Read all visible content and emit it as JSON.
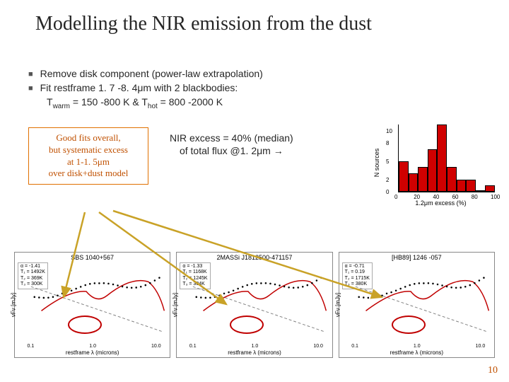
{
  "title": "Modelling the NIR emission from the dust",
  "bullets": [
    "Remove disk component (power-law extrapolation)",
    "Fit restframe 1. 7 -8. 4μm with 2 blackbodies:"
  ],
  "temp_line": {
    "prefix": "T",
    "sub1": "warm",
    "mid1": " = 150 -800 K  &   T",
    "sub2": "hot",
    "mid2": " = 800 -2000 K"
  },
  "goodfits": {
    "l1": "Good fits overall,",
    "l2": "but systematic excess",
    "l3": "at 1-1. 5μm",
    "l4": "over disk+dust model"
  },
  "nir_excess": {
    "l1": "NIR excess = 40% (median)",
    "l2": "of total flux @1. 2μm →"
  },
  "histogram": {
    "ylabel": "N sources",
    "xlabel": "1.2μm excess (%)",
    "bar_color": "#d00000",
    "bins": [
      0,
      10,
      20,
      30,
      40,
      50,
      60,
      70,
      80,
      90,
      100
    ],
    "counts": [
      5,
      3,
      4,
      7,
      11,
      4,
      2,
      2,
      0,
      1
    ],
    "ymax": 11,
    "yticks": [
      0,
      2,
      5,
      8,
      10
    ],
    "xticks": [
      0,
      20,
      40,
      60,
      80,
      100
    ]
  },
  "sed_panels": [
    {
      "title": "SBS 1040+567",
      "box": [
        "α = -1.41",
        "T₁ = 1492K",
        "T₂ = 369K",
        "T₃ = 300K"
      ]
    },
    {
      "title": "2MASSi J1812500-471157",
      "box": [
        "α = -1.33",
        "T₁ = 1168K",
        "T₂ = 1245K",
        "T₃ = 304K"
      ]
    },
    {
      "title": "[HB89] 1246 -057",
      "box": [
        "α = -0.71",
        "T₁ = 0.19",
        "T₂ = 1715K",
        "T₃ = 380K"
      ]
    }
  ],
  "sed_common": {
    "ylabel": "νFν [mJy]",
    "xlabel": "restframe λ (microns)",
    "xticks": [
      "0.1",
      "1.0",
      "10.0"
    ],
    "model_color": "#c00000",
    "dash_color": "#808080",
    "ellipse_color": "#c00000",
    "arrow_color": "#c9a227"
  },
  "page_number": "10",
  "colors": {
    "title": "#262626",
    "accent": "#c05000",
    "box_border": "#e07000"
  }
}
